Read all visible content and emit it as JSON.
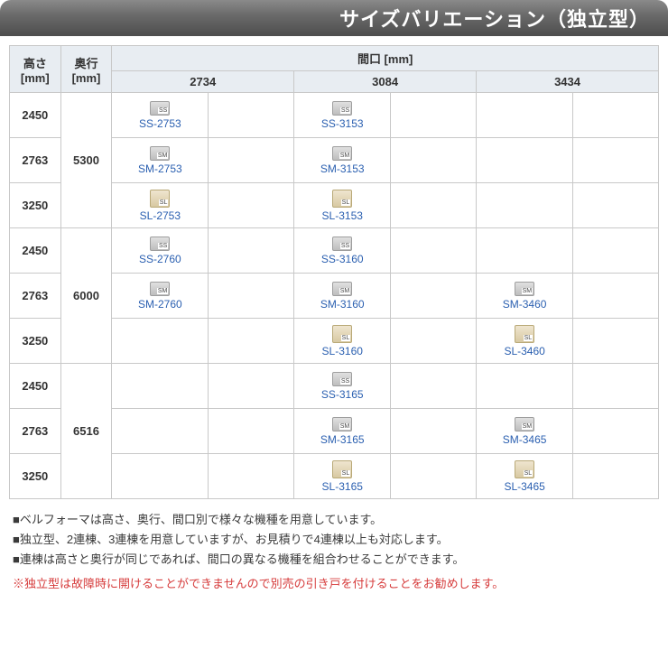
{
  "title": "サイズバリエーション（独立型）",
  "headers": {
    "height": "高さ\n[mm]",
    "depth": "奥行\n[mm]",
    "width": "間口 [mm]",
    "widths": [
      "2734",
      "3084",
      "3434"
    ]
  },
  "heights": [
    "2450",
    "2763",
    "3250"
  ],
  "depths": [
    "5300",
    "6000",
    "6516"
  ],
  "icon_tags": {
    "SS": "SS",
    "SM": "SM",
    "SL": "SL"
  },
  "groups": [
    {
      "depth": "5300",
      "rows": [
        {
          "h": "2450",
          "cells": [
            {
              "code": "SS-2753",
              "tag": "SS"
            },
            null,
            {
              "code": "SS-3153",
              "tag": "SS"
            },
            null,
            null,
            null
          ]
        },
        {
          "h": "2763",
          "cells": [
            {
              "code": "SM-2753",
              "tag": "SM"
            },
            null,
            {
              "code": "SM-3153",
              "tag": "SM"
            },
            null,
            null,
            null
          ]
        },
        {
          "h": "3250",
          "cells": [
            {
              "code": "SL-2753",
              "tag": "SL"
            },
            null,
            {
              "code": "SL-3153",
              "tag": "SL"
            },
            null,
            null,
            null
          ]
        }
      ]
    },
    {
      "depth": "6000",
      "rows": [
        {
          "h": "2450",
          "cells": [
            {
              "code": "SS-2760",
              "tag": "SS"
            },
            null,
            {
              "code": "SS-3160",
              "tag": "SS"
            },
            null,
            null,
            null
          ]
        },
        {
          "h": "2763",
          "cells": [
            {
              "code": "SM-2760",
              "tag": "SM"
            },
            null,
            {
              "code": "SM-3160",
              "tag": "SM"
            },
            null,
            {
              "code": "SM-3460",
              "tag": "SM"
            },
            null
          ]
        },
        {
          "h": "3250",
          "cells": [
            null,
            null,
            {
              "code": "SL-3160",
              "tag": "SL"
            },
            null,
            {
              "code": "SL-3460",
              "tag": "SL"
            },
            null
          ]
        }
      ]
    },
    {
      "depth": "6516",
      "rows": [
        {
          "h": "2450",
          "cells": [
            null,
            null,
            {
              "code": "SS-3165",
              "tag": "SS"
            },
            null,
            null,
            null
          ]
        },
        {
          "h": "2763",
          "cells": [
            null,
            null,
            {
              "code": "SM-3165",
              "tag": "SM"
            },
            null,
            {
              "code": "SM-3465",
              "tag": "SM"
            },
            null
          ]
        },
        {
          "h": "3250",
          "cells": [
            null,
            null,
            {
              "code": "SL-3165",
              "tag": "SL"
            },
            null,
            {
              "code": "SL-3465",
              "tag": "SL"
            },
            null
          ]
        }
      ]
    }
  ],
  "notes": [
    "■ベルフォーマは高さ、奥行、間口別で様々な機種を用意しています。",
    "■独立型、2連棟、3連棟を用意していますが、お見積りで4連棟以上も対応します。",
    "■連棟は高さと奥行が同じであれば、間口の異なる機種を組合わせることができます。"
  ],
  "warning": "※独立型は故障時に開けることができませんので別売の引き戸を付けることをお勧めします。",
  "colors": {
    "header_bg": "#e8edf2",
    "border": "#c8c8c8",
    "link": "#2a5fb0",
    "warning": "#d63b3b",
    "title_bg_top": "#8a8a8a",
    "title_bg_bot": "#4d4d4d"
  }
}
